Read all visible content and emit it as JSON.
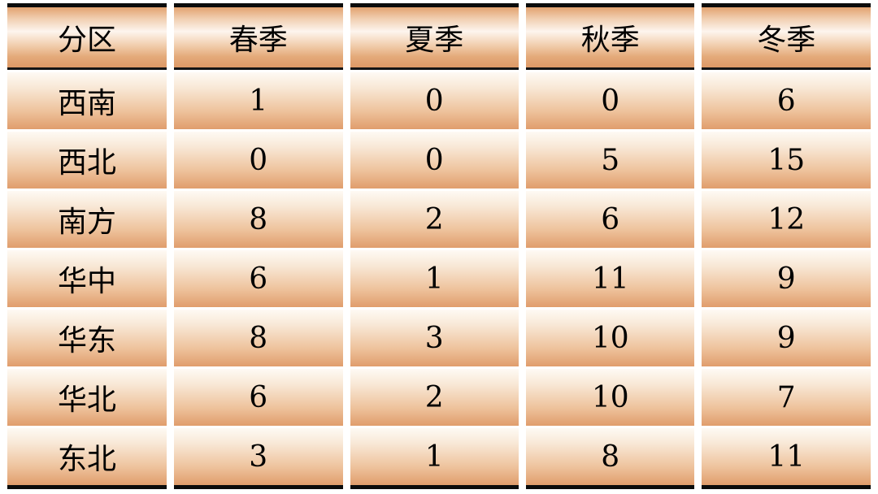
{
  "chart_data": {
    "type": "table",
    "title": "",
    "columns": [
      "分区",
      "春季",
      "夏季",
      "秋季",
      "冬季"
    ],
    "rows": [
      {
        "region": "西南",
        "values": [
          "1",
          "0",
          "0",
          "6"
        ]
      },
      {
        "region": "西北",
        "values": [
          "0",
          "0",
          "5",
          "15"
        ]
      },
      {
        "region": "南方",
        "values": [
          "8",
          "2",
          "6",
          "12"
        ]
      },
      {
        "region": "华中",
        "values": [
          "6",
          "1",
          "11",
          "9"
        ]
      },
      {
        "region": "华东",
        "values": [
          "8",
          "3",
          "10",
          "9"
        ]
      },
      {
        "region": "华北",
        "values": [
          "6",
          "2",
          "10",
          "7"
        ]
      },
      {
        "region": "东北",
        "values": [
          "3",
          "1",
          "8",
          "11"
        ]
      }
    ]
  },
  "colors": {
    "header_gradient_top": "#e2a26f",
    "header_gradient_middle": "#fdf5ee",
    "header_gradient_bottom": "#dd9966",
    "cell_gradient_top": "#fefaf4",
    "cell_gradient_bottom": "#e09d6c",
    "rule_black": "#0b0b0b",
    "text": "#000000",
    "page_background": "#ffffff"
  }
}
